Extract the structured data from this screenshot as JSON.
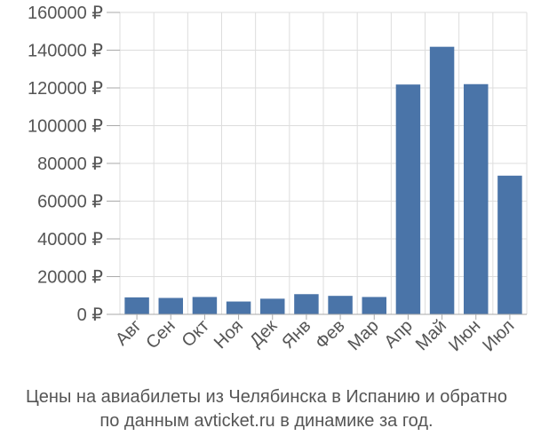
{
  "chart_data": {
    "type": "bar",
    "categories": [
      "Авг",
      "Сен",
      "Окт",
      "Ноя",
      "Дек",
      "Янв",
      "Фев",
      "Мар",
      "Апр",
      "Май",
      "Июн",
      "Июл"
    ],
    "values": [
      9000,
      8700,
      9200,
      6800,
      8300,
      10700,
      9800,
      9200,
      121800,
      141800,
      122000,
      73500
    ],
    "ylim": [
      0,
      160000
    ],
    "yticks": [
      0,
      20000,
      40000,
      60000,
      80000,
      100000,
      120000,
      140000,
      160000
    ],
    "ytick_labels": [
      "0 ₽",
      "20000 ₽",
      "40000 ₽",
      "60000 ₽",
      "80000 ₽",
      "100000 ₽",
      "120000 ₽",
      "140000 ₽",
      "160000 ₽"
    ],
    "grid": true,
    "bar_color": "#4a74a8",
    "title": ""
  },
  "caption": {
    "line1": "Цены на авиабилеты из Челябинска в Испанию и обратно",
    "line2": "по данным avticket.ru в динамике за год."
  }
}
